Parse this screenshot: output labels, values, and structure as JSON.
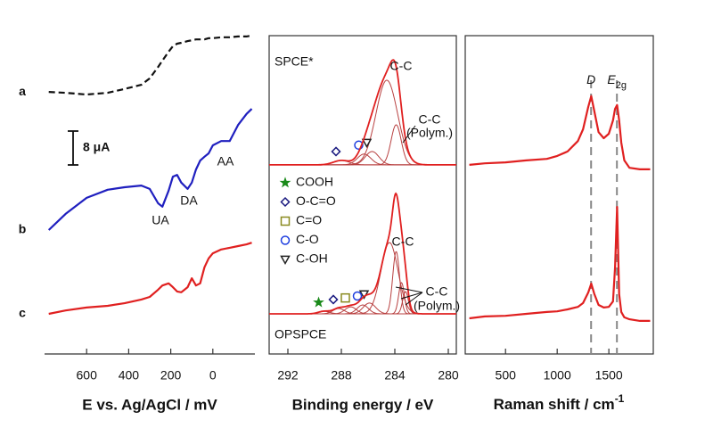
{
  "chart_data": [
    {
      "type": "line",
      "xlabel": "E vs. Ag/AgCl / mV",
      "xlim": [
        800,
        -200
      ],
      "xticks": [
        600,
        400,
        200,
        0
      ],
      "ylim": [
        0,
        80
      ],
      "scale_bar": {
        "value": 8,
        "label": "8 μA"
      },
      "x": [
        780,
        700,
        600,
        500,
        420,
        340,
        300,
        260,
        240,
        210,
        190,
        170,
        150,
        120,
        100,
        80,
        60,
        40,
        20,
        0,
        -40,
        -80,
        -120,
        -160,
        -185
      ],
      "series": [
        {
          "name": "a",
          "color": "#111111",
          "dashed": true,
          "values": [
            62.5,
            62.3,
            61.9,
            62.3,
            63.2,
            64.2,
            65.7,
            68.4,
            69.9,
            72.0,
            73.3,
            73.9,
            74.1,
            74.5,
            74.7,
            74.9,
            74.9,
            74.9,
            75.2,
            75.2,
            75.4,
            75.4,
            75.6,
            75.6,
            75.8
          ]
        },
        {
          "name": "b",
          "color": "#1f1fbf",
          "dashed": false,
          "values": [
            29.9,
            33.7,
            37.5,
            39.4,
            40.0,
            40.4,
            39.6,
            36.2,
            35.4,
            39.2,
            42.5,
            42.9,
            41.1,
            39.6,
            41.1,
            44.2,
            46.3,
            47.2,
            48.0,
            49.9,
            50.9,
            50.9,
            54.7,
            57.3,
            58.5
          ]
        },
        {
          "name": "c",
          "color": "#e02020",
          "dashed": false,
          "values": [
            10.1,
            10.9,
            11.6,
            12.0,
            12.6,
            13.5,
            14.1,
            15.8,
            16.8,
            17.3,
            16.4,
            15.4,
            15.2,
            16.4,
            18.5,
            16.8,
            17.3,
            21.1,
            23.2,
            24.4,
            25.3,
            25.7,
            26.1,
            26.5,
            26.9
          ]
        }
      ],
      "annotations": [
        "UA",
        "DA",
        "AA"
      ]
    },
    {
      "type": "peakfit",
      "xlabel": "Binding energy / eV",
      "xlim": [
        293.4,
        279.4
      ],
      "xticks": [
        292,
        288,
        284,
        280
      ],
      "ylim": [
        0,
        100
      ],
      "envelope_color": "#e02020",
      "component_color": "#b84040",
      "legend": [
        {
          "name": "COOH",
          "marker": "star",
          "color": "#1a8a1a"
        },
        {
          "name": "O-C=O",
          "marker": "diamond",
          "color": "#1a1a80"
        },
        {
          "name": "C=O",
          "marker": "square",
          "color": "#8a8a20"
        },
        {
          "name": "C-O",
          "marker": "circle",
          "color": "#1f3fdf"
        },
        {
          "name": "C-OH",
          "marker": "triangle",
          "color": "#222222"
        }
      ],
      "spectra": [
        {
          "name": "SPCE*",
          "color": "#1f1fbf",
          "baseline": 59.4,
          "labels": [
            "C-C",
            "C-C",
            "(Polym.)"
          ],
          "components": [
            {
              "center": 284.6,
              "height": 26.6,
              "fwhm": 1.9
            },
            {
              "center": 283.9,
              "height": 12.6,
              "fwhm": 0.9
            },
            {
              "center": 285.7,
              "height": 4.2,
              "fwhm": 1.2,
              "marker": "triangle"
            },
            {
              "center": 286.3,
              "height": 3.4,
              "fwhm": 1.2,
              "marker": "circle"
            },
            {
              "center": 288.0,
              "height": 1.4,
              "fwhm": 1.4,
              "marker": "diamond"
            }
          ]
        },
        {
          "name": "OPSPCE",
          "color": "#e02020",
          "baseline": 12.6,
          "labels": [
            "C-C",
            "C-C",
            "(Polym.)"
          ],
          "components": [
            {
              "center": 284.4,
              "height": 22.4,
              "fwhm": 1.5
            },
            {
              "center": 283.9,
              "height": 19.6,
              "fwhm": 0.6
            },
            {
              "center": 283.5,
              "height": 9.8,
              "fwhm": 0.5
            },
            {
              "center": 283.2,
              "height": 7.0,
              "fwhm": 0.5
            },
            {
              "center": 285.9,
              "height": 3.4,
              "fwhm": 1.1,
              "marker": "triangle"
            },
            {
              "center": 286.4,
              "height": 2.8,
              "fwhm": 1.0,
              "marker": "circle"
            },
            {
              "center": 287.3,
              "height": 2.2,
              "fwhm": 1.0,
              "marker": "square"
            },
            {
              "center": 288.2,
              "height": 1.7,
              "fwhm": 1.0,
              "marker": "diamond"
            },
            {
              "center": 289.3,
              "height": 0.8,
              "fwhm": 1.0,
              "marker": "star"
            }
          ]
        }
      ]
    },
    {
      "type": "line",
      "xlabel": {
        "main": "Raman shift / cm",
        "sup": "-1"
      },
      "xlim": [
        110,
        1930
      ],
      "xticks": [
        500,
        1000,
        1500
      ],
      "ylim": [
        0,
        100
      ],
      "reference_lines": [
        {
          "value": 1328,
          "label": {
            "main": "D"
          }
        },
        {
          "value": 1578,
          "label": {
            "main": "E",
            "sub": "2g"
          }
        }
      ],
      "x": [
        150,
        300,
        500,
        700,
        900,
        1000,
        1100,
        1200,
        1250,
        1300,
        1330,
        1360,
        1400,
        1450,
        1500,
        1540,
        1560,
        1580,
        1600,
        1620,
        1650,
        1700,
        1800,
        1900
      ],
      "series": [
        {
          "color": "#e02020",
          "dashed": false,
          "values": [
            59.4,
            59.9,
            60.2,
            60.8,
            61.3,
            62.2,
            63.6,
            66.9,
            70.6,
            77.6,
            81.0,
            76.2,
            69.7,
            67.8,
            69.2,
            73.4,
            77.0,
            78.2,
            73.4,
            66.4,
            60.8,
            58.5,
            58.0,
            58.0
          ]
        },
        {
          "color": "#e02020",
          "dashed": false,
          "values": [
            11.2,
            11.8,
            12.0,
            12.6,
            13.2,
            13.4,
            14.0,
            14.8,
            16.0,
            19.3,
            22.1,
            18.8,
            15.4,
            14.6,
            14.8,
            16.5,
            27.2,
            46.2,
            18.8,
            13.2,
            11.5,
            10.9,
            10.4,
            10.4
          ]
        }
      ]
    }
  ]
}
